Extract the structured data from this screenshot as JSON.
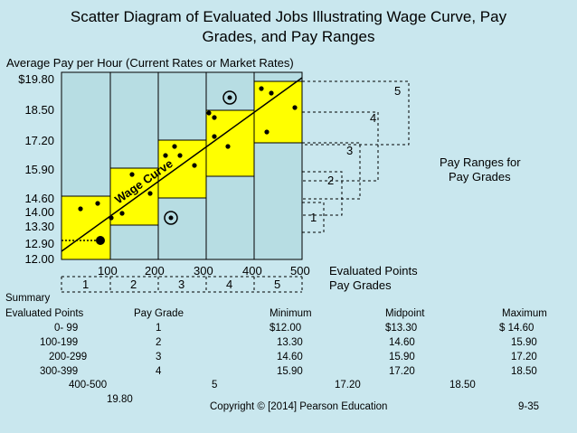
{
  "title_line1": "Scatter Diagram of Evaluated Jobs Illustrating Wage Curve, Pay",
  "title_line2": "Grades, and Pay Ranges",
  "y_axis_label": "Average Pay per Hour (Current Rates or Market Rates)",
  "y_ticks": [
    "$19.80",
    "18.50",
    "17.20",
    "15.90",
    "14.60",
    "14.00",
    "13.30",
    "12.90",
    "12.00"
  ],
  "x_ticks": [
    "100",
    "200",
    "300",
    "400",
    "500"
  ],
  "grade_labels": [
    "1",
    "2",
    "3",
    "4",
    "5"
  ],
  "range_numbers": [
    "1",
    "2",
    "3",
    "4",
    "5"
  ],
  "evaluated_points_label": "Evaluated Points",
  "pay_grades_label": "Pay Grades",
  "pay_ranges_label_1": "Pay Ranges for",
  "pay_ranges_label_2": "Pay Grades",
  "wage_curve_label": "Wage Curve",
  "summary": {
    "title": "Summary",
    "headers": [
      "Evaluated Points",
      "Pay Grade",
      "Minimum",
      "Midpoint",
      "Maximum"
    ],
    "rows": [
      [
        "0-  99",
        "1",
        "$12.00",
        "$13.30",
        "$ 14.60"
      ],
      [
        "100-199",
        "2",
        "13.30",
        "14.60",
        "15.90"
      ],
      [
        "200-299",
        "3",
        "14.60",
        "15.90",
        "17.20"
      ],
      [
        "300-399",
        "4",
        "15.90",
        "17.20",
        "18.50"
      ],
      [
        "400-500",
        "5",
        "17.20",
        "18.50"
      ]
    ],
    "overflow_value": "19.80"
  },
  "copyright": "Copyright © [2014] Pearson Education",
  "slide_number": "9-35",
  "colors": {
    "background": "#c9e7ee",
    "cell": "#b7dde3",
    "grade_box": "#ffff00",
    "ink": "#000000"
  }
}
